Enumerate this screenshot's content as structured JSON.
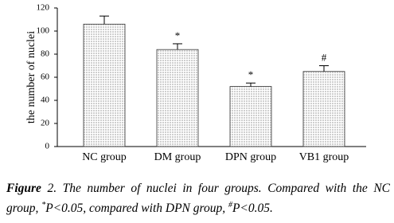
{
  "chart_data": {
    "type": "bar",
    "y_label": "the number of nuclei",
    "categories": [
      "NC group",
      "DM group",
      "DPN group",
      "VB1 group"
    ],
    "values": [
      106,
      84,
      52,
      65
    ],
    "errors": [
      7,
      5,
      3,
      5
    ],
    "markers": [
      null,
      "*",
      "*",
      "#"
    ],
    "color": "#cfcfcf",
    "ylim": [
      0,
      120
    ],
    "yticks": [
      0,
      20,
      40,
      60,
      80,
      100,
      120
    ],
    "grid": false
  },
  "caption": [
    "Figure",
    " 2. The number of nuclei in four groups. Compared with the NC group, ",
    "*",
    "P<0.05, compared with DPN group, ",
    "#",
    "P<0.05."
  ]
}
